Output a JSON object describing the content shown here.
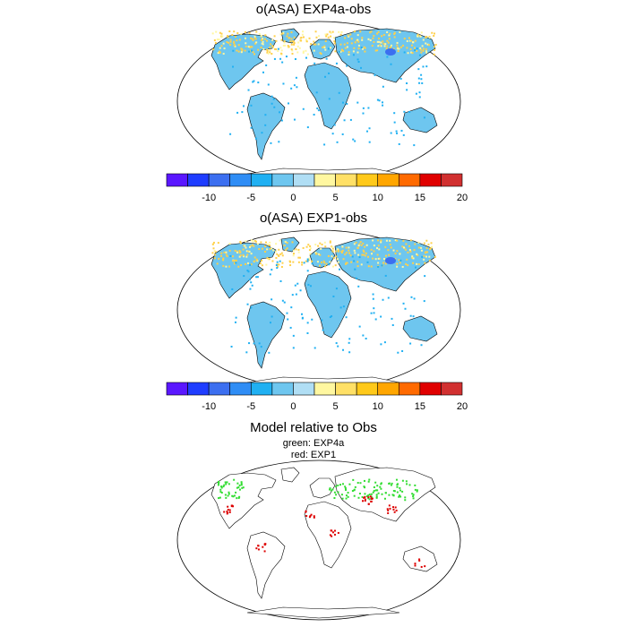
{
  "panels": [
    {
      "title": "o(ASA) EXP4a-obs"
    },
    {
      "title": "o(ASA) EXP1-obs"
    },
    {
      "title": "Model relative to Obs",
      "legend": [
        "green: EXP4a",
        "red: EXP1"
      ]
    }
  ],
  "colorbar": {
    "tick_labels": [
      "-10",
      "-5",
      "0",
      "5",
      "10",
      "15",
      "20"
    ],
    "colors": [
      "#5a17ff",
      "#1f3dff",
      "#3c6ff0",
      "#2f8df5",
      "#20b0f2",
      "#6ec6ef",
      "#b0def4",
      "#fff7a0",
      "#ffe066",
      "#ffc91a",
      "#ffa600",
      "#ff6a00",
      "#e00000",
      "#d13030"
    ]
  },
  "colors": {
    "ocean": "#ffffff",
    "coast": "#000000",
    "land_neg": "#6ec6ef",
    "land_neg_strong": "#20b0f2",
    "land_pos": "#ffd04a",
    "exp4a": "#33dd33",
    "exp1": "#dd0000"
  }
}
